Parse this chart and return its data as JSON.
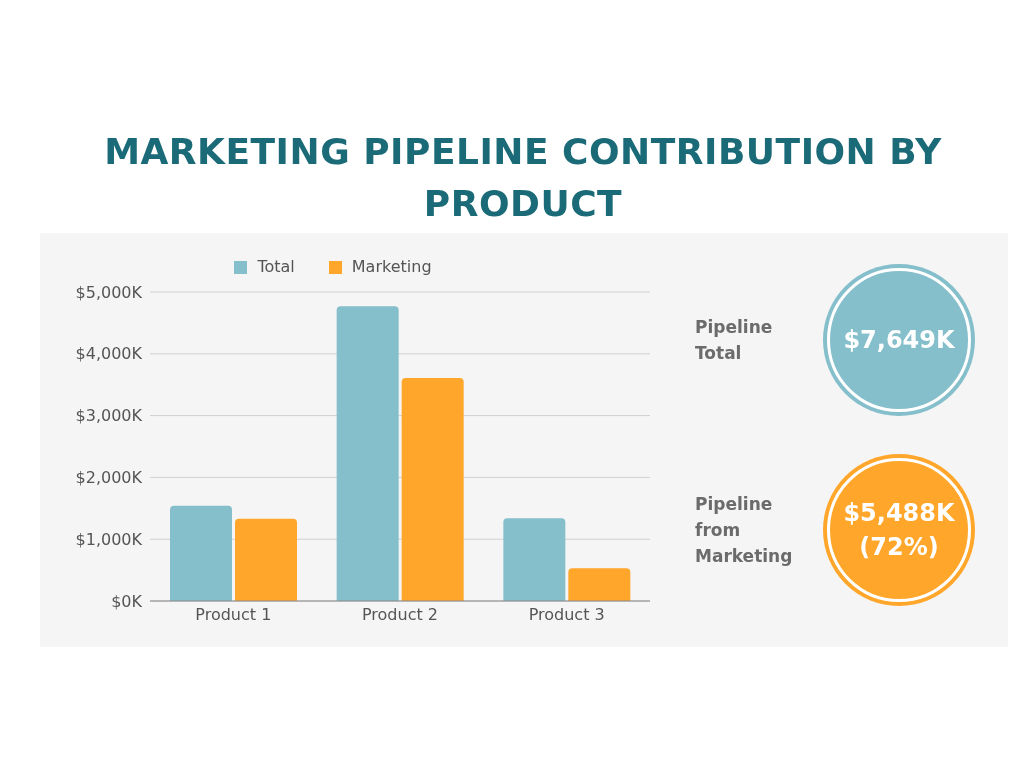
{
  "chart_data": {
    "type": "bar",
    "title": "MARKETING PIPELINE CONTRIBUTION BY PRODUCT",
    "categories": [
      "Product 1",
      "Product 2",
      "Product 3"
    ],
    "series": [
      {
        "name": "Total",
        "color": "#85bfcb",
        "values": [
          1540,
          4770,
          1340
        ]
      },
      {
        "name": "Marketing",
        "color": "#ffa62b",
        "values": [
          1330,
          3610,
          530
        ]
      }
    ],
    "ylim": [
      0,
      5000
    ],
    "yticks": [
      {
        "value": 0,
        "label": "$0K"
      },
      {
        "value": 1000,
        "label": "$1,000K"
      },
      {
        "value": 2000,
        "label": "$2,000K"
      },
      {
        "value": 3000,
        "label": "$3,000K"
      },
      {
        "value": 4000,
        "label": "$4,000K"
      },
      {
        "value": 5000,
        "label": "$5,000K"
      }
    ],
    "grid": "y",
    "legend": "top",
    "annotations": [
      "Pipeline Total",
      "$7,649K",
      "Pipeline from Marketing",
      "$5,488K (72%)"
    ]
  }
}
